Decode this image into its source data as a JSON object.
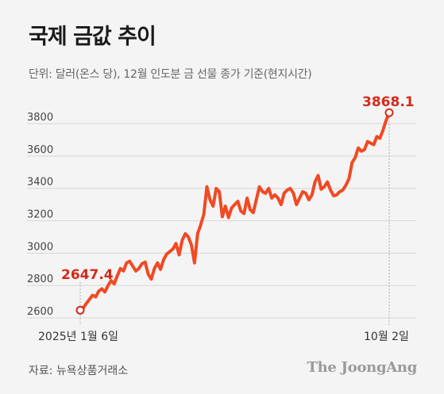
{
  "title": "국제 금값 추이",
  "subtitle": "단위: 달러(온스 당), 12월 인도분 금 선물 종가 기준(현지시간)",
  "source": "자료: 뉴욕상품거래소",
  "brand": "The JoongAng",
  "colors": {
    "line": "#f04a24",
    "annotation": "#d42a1a",
    "grid": "#d6d6d6",
    "background": "#f4f4f4"
  },
  "chart_data": {
    "type": "line",
    "title": "국제 금값 추이",
    "ylabel": "",
    "xlabel": "",
    "ylim": [
      2600,
      3900
    ],
    "yticks": [
      2600,
      2800,
      3000,
      3200,
      3400,
      3600,
      3800
    ],
    "grid": true,
    "x_labels": [
      "2025년 1월 6일",
      "10월 2일"
    ],
    "annotations": [
      {
        "label": "2647.4",
        "x": "2025년 1월 6일",
        "y": 2647.4
      },
      {
        "label": "3868.1",
        "x": "10월 2일",
        "y": 3868.1
      }
    ],
    "series": [
      {
        "values": [
          2647.4,
          2662,
          2690,
          2715,
          2740,
          2730,
          2765,
          2780,
          2760,
          2800,
          2830,
          2810,
          2860,
          2905,
          2890,
          2940,
          2950,
          2920,
          2890,
          2905,
          2935,
          2945,
          2870,
          2840,
          2905,
          2940,
          2900,
          2960,
          2995,
          3010,
          3025,
          3060,
          2990,
          3080,
          3120,
          3100,
          3050,
          2940,
          3120,
          3175,
          3240,
          3410,
          3330,
          3290,
          3400,
          3380,
          3225,
          3290,
          3220,
          3280,
          3300,
          3320,
          3260,
          3245,
          3340,
          3270,
          3250,
          3330,
          3410,
          3380,
          3370,
          3400,
          3340,
          3360,
          3340,
          3300,
          3370,
          3390,
          3400,
          3370,
          3300,
          3340,
          3380,
          3370,
          3330,
          3360,
          3440,
          3480,
          3395,
          3410,
          3440,
          3390,
          3355,
          3360,
          3380,
          3390,
          3420,
          3460,
          3560,
          3590,
          3650,
          3630,
          3640,
          3690,
          3680,
          3670,
          3720,
          3710,
          3760,
          3820,
          3868.1
        ]
      }
    ]
  }
}
